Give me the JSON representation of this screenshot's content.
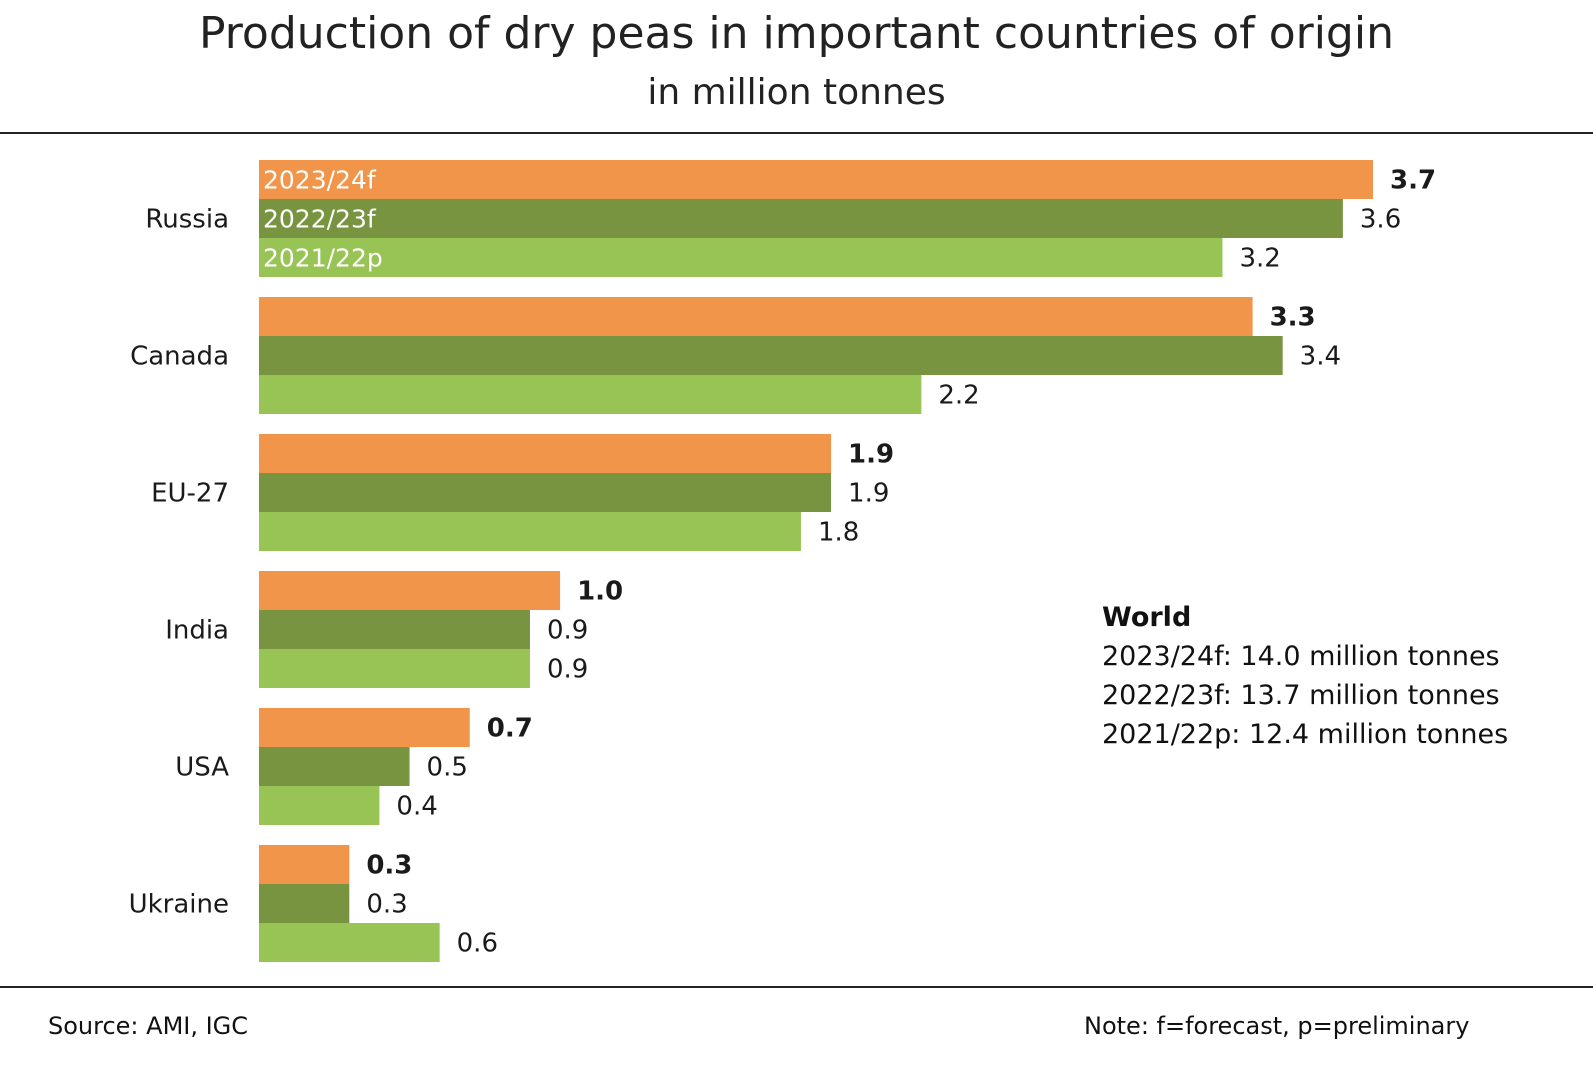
{
  "chart_data": {
    "type": "bar",
    "orientation": "horizontal",
    "title": "Production of dry peas in important countries of origin",
    "subtitle": "in million tonnes",
    "categories": [
      "Russia",
      "Canada",
      "EU-27",
      "India",
      "USA",
      "Ukraine"
    ],
    "series": [
      {
        "name": "2023/24f",
        "color": "#f0954a",
        "values": [
          3.7,
          3.3,
          1.9,
          1.0,
          0.7,
          0.3
        ],
        "labels": [
          "3.7",
          "3.3",
          "1.9",
          "1.0",
          "0.7",
          "0.3"
        ]
      },
      {
        "name": "2022/23f",
        "color": "#789440",
        "values": [
          3.6,
          3.4,
          1.9,
          0.9,
          0.5,
          0.3
        ],
        "labels": [
          "3.6",
          "3.4",
          "1.9",
          "0.9",
          "0.5",
          "0.3"
        ]
      },
      {
        "name": "2021/22p",
        "color": "#97c455",
        "values": [
          3.2,
          2.2,
          1.8,
          0.9,
          0.4,
          0.6
        ],
        "labels": [
          "3.2",
          "2.2",
          "1.8",
          "0.9",
          "0.4",
          "0.6"
        ]
      }
    ],
    "xlim": [
      0,
      3.7
    ],
    "grid": false,
    "legend": "inside first bar group"
  },
  "world": {
    "title": "World",
    "lines": [
      "2023/24f: 14.0 million tonnes",
      "2022/23f: 13.7 million tonnes",
      "2021/22p: 12.4 million tonnes"
    ]
  },
  "footer": {
    "source": "Source:  AMI, IGC",
    "note": "Note: f=forecast, p=preliminary"
  }
}
